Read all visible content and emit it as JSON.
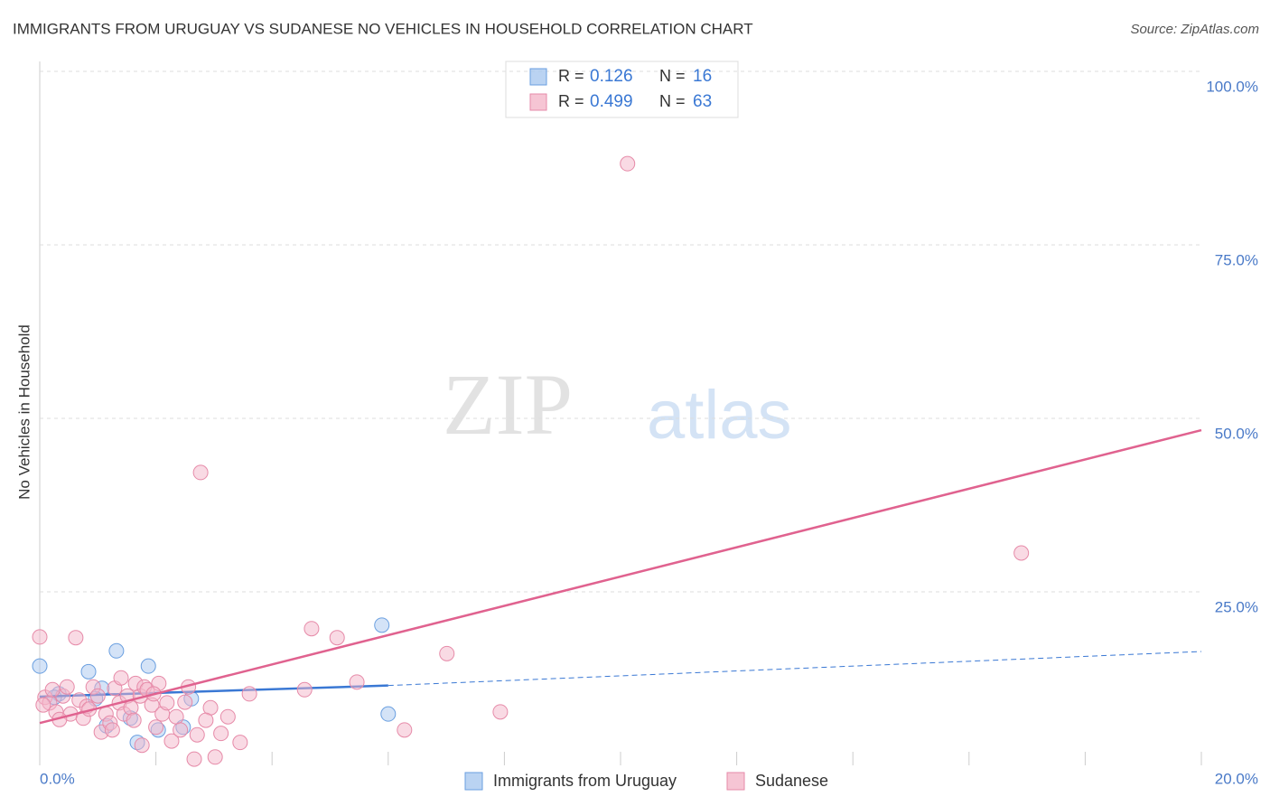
{
  "chart_data": {
    "type": "scatter",
    "title": "IMMIGRANTS FROM URUGUAY VS SUDANESE NO VEHICLES IN HOUSEHOLD CORRELATION CHART",
    "source": "Source: ZipAtlas.com",
    "watermark": [
      "ZIP",
      "atlas"
    ],
    "ylabel": "No Vehicles in Household",
    "xlim": [
      0,
      20
    ],
    "ylim": [
      0,
      100
    ],
    "xticks": [
      {
        "value": 0,
        "label": "0.0%"
      },
      {
        "value": 20,
        "label": "20.0%"
      }
    ],
    "xtick_marks": [
      2,
      4,
      6,
      8,
      10,
      12,
      14,
      16,
      18
    ],
    "yticks": [
      {
        "value": 25,
        "label": "25.0%"
      },
      {
        "value": 50,
        "label": "50.0%"
      },
      {
        "value": 75,
        "label": "75.0%"
      },
      {
        "value": 100,
        "label": "100.0%"
      }
    ],
    "grid": true,
    "legend_position": "top",
    "stat_labels": {
      "r": "R =",
      "n": "N ="
    },
    "series": [
      {
        "name": "Immigrants from Uruguay",
        "color": "#a9c8ef",
        "stroke": "#6a9fe0",
        "line_color": "#3a78d4",
        "r": 0.126,
        "n": 16,
        "x": [
          0,
          0.33,
          0.84,
          1.07,
          1.32,
          0.96,
          1.15,
          1.56,
          1.68,
          1.87,
          2.04,
          2.47,
          2.61,
          5.89,
          6.0,
          0.25
        ],
        "values": [
          14.3,
          10.3,
          13.5,
          11.1,
          16.5,
          9.6,
          5.7,
          6.8,
          3.3,
          14.3,
          5.1,
          5.5,
          9.6,
          20.2,
          7.4,
          9.8
        ],
        "trend": {
          "x": [
            0,
            6,
            20
          ],
          "y": [
            9.9,
            11.5,
            16.4
          ]
        }
      },
      {
        "name": "Sudanese",
        "color": "#f4b6c9",
        "stroke": "#e68aa8",
        "line_color": "#e0628f",
        "r": 0.499,
        "n": 63,
        "x": [
          0,
          0.09,
          0.17,
          0.28,
          0.4,
          0.53,
          0.62,
          0.68,
          0.75,
          0.81,
          0.92,
          1.0,
          1.06,
          1.14,
          1.21,
          1.29,
          1.37,
          1.45,
          1.51,
          1.57,
          1.65,
          1.73,
          1.8,
          1.85,
          1.93,
          2.0,
          2.05,
          2.11,
          2.19,
          2.27,
          2.35,
          2.42,
          2.56,
          2.66,
          2.71,
          2.77,
          2.94,
          3.02,
          3.24,
          3.45,
          3.61,
          4.56,
          4.68,
          5.12,
          5.46,
          6.28,
          7.01,
          7.93,
          10.12,
          16.9,
          0.06,
          0.22,
          0.34,
          0.47,
          0.85,
          1.25,
          1.4,
          1.62,
          1.76,
          1.96,
          2.5,
          2.86,
          3.12
        ],
        "values": [
          18.5,
          9.8,
          9.0,
          7.7,
          10.0,
          7.4,
          18.4,
          9.4,
          6.8,
          8.5,
          11.3,
          10.0,
          4.8,
          7.4,
          6.1,
          11.1,
          9.0,
          7.4,
          10.0,
          8.3,
          11.8,
          10.0,
          11.3,
          10.9,
          8.7,
          5.5,
          11.8,
          7.4,
          9.0,
          3.5,
          7.0,
          5.1,
          11.3,
          0.9,
          4.4,
          42.2,
          8.3,
          1.2,
          7.0,
          3.3,
          10.3,
          10.9,
          19.7,
          18.4,
          12.0,
          5.1,
          16.1,
          7.7,
          86.7,
          30.6,
          8.7,
          10.9,
          6.6,
          11.3,
          8.1,
          5.1,
          12.6,
          6.5,
          2.9,
          10.3,
          9.1,
          6.5,
          4.6
        ],
        "trend": {
          "x": [
            0,
            20
          ],
          "y": [
            6.1,
            48.3
          ]
        }
      }
    ]
  }
}
